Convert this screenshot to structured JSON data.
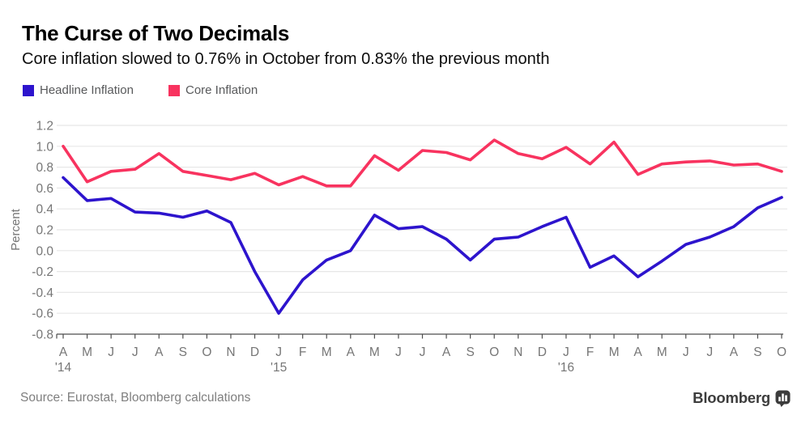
{
  "chart_data": {
    "type": "line",
    "title": "The Curse of Two Decimals",
    "subtitle": "Core inflation slowed to 0.76% in October from 0.83% the previous month",
    "ylabel": "Percent",
    "ylim": [
      -0.8,
      1.2
    ],
    "yticks": [
      1.2,
      1.0,
      0.8,
      0.6,
      0.4,
      0.2,
      0.0,
      -0.2,
      -0.4,
      -0.6,
      -0.8
    ],
    "grid": "horizontal",
    "legend_position": "top-left",
    "categories": [
      "A",
      "M",
      "J",
      "J",
      "A",
      "S",
      "O",
      "N",
      "D",
      "J",
      "F",
      "M",
      "A",
      "M",
      "J",
      "J",
      "A",
      "S",
      "O",
      "N",
      "D",
      "J",
      "F",
      "M",
      "A",
      "M",
      "J",
      "J",
      "A",
      "S",
      "O"
    ],
    "year_labels": [
      {
        "index": 0,
        "label": "'14"
      },
      {
        "index": 9,
        "label": "'15"
      },
      {
        "index": 21,
        "label": "'16"
      }
    ],
    "series": [
      {
        "name": "Headline Inflation",
        "color": "#2d14cd",
        "values": [
          0.7,
          0.48,
          0.5,
          0.37,
          0.36,
          0.32,
          0.38,
          0.27,
          -0.2,
          -0.6,
          -0.28,
          -0.09,
          0.0,
          0.34,
          0.21,
          0.23,
          0.11,
          -0.09,
          0.11,
          0.13,
          0.23,
          0.32,
          -0.16,
          -0.05,
          -0.25,
          -0.1,
          0.06,
          0.13,
          0.23,
          0.41,
          0.51
        ]
      },
      {
        "name": "Core Inflation",
        "color": "#f8335f",
        "values": [
          1.0,
          0.66,
          0.76,
          0.78,
          0.93,
          0.76,
          0.72,
          0.68,
          0.74,
          0.63,
          0.71,
          0.62,
          0.62,
          0.91,
          0.77,
          0.96,
          0.94,
          0.87,
          1.06,
          0.93,
          0.88,
          0.99,
          0.83,
          1.04,
          0.73,
          0.83,
          0.85,
          0.86,
          0.82,
          0.83,
          0.76
        ]
      }
    ],
    "style": {
      "grid_color": "#e7e7e7",
      "axis_color": "#4d4d4d",
      "tick_label_color": "#767676",
      "line_width": 3.6
    }
  },
  "footer": {
    "source": "Source: Eurostat, Bloomberg calculations",
    "brand": "Bloomberg"
  }
}
